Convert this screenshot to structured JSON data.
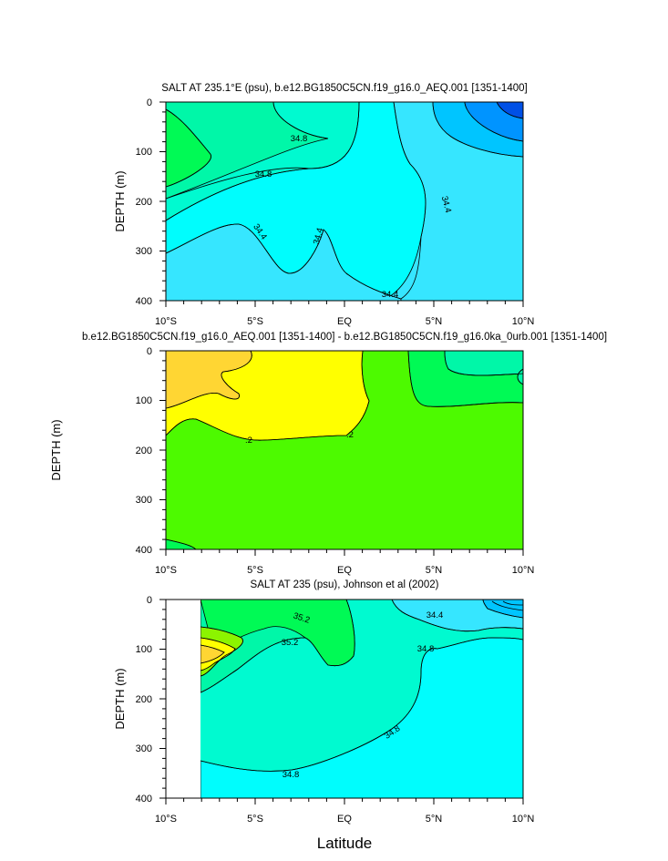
{
  "chart_data": [
    {
      "type": "contour",
      "title": "SALT AT 235.1°E (psu), b.e12.BG1850C5CN.f19_g16.0_AEQ.001 [1351-1400]",
      "ylabel": "DEPTH (m)",
      "xlabel": "",
      "xlim": [
        -10,
        10
      ],
      "ylim": [
        400,
        0
      ],
      "xticks": [
        "10°S",
        "5°S",
        "EQ",
        "5°N",
        "10°N"
      ],
      "yticks": [
        "0",
        "100",
        "200",
        "300",
        "400"
      ],
      "contour_labels": [
        "34.8",
        "34.8",
        "34.4",
        "34.4",
        "34.4",
        "34.4"
      ]
    },
    {
      "type": "contour",
      "title": "b.e12.BG1850C5CN.f19_g16.0_AEQ.001 [1351-1400] - b.e12.BG1850C5CN.f19_g16.0ka_0urb.001 [1351-1400]",
      "ylabel": "DEPTH (m)",
      "xlabel": "",
      "xlim": [
        -10,
        10
      ],
      "ylim": [
        400,
        0
      ],
      "xticks": [
        "10°S",
        "5°S",
        "EQ",
        "5°N",
        "10°N"
      ],
      "yticks": [
        "0",
        "100",
        "200",
        "300",
        "400"
      ],
      "contour_labels": [
        ".2",
        ".2"
      ]
    },
    {
      "type": "contour",
      "title": "SALT AT 235 (psu), Johnson et al (2002)",
      "ylabel": "DEPTH (m)",
      "xlabel": "Latitude",
      "xlim": [
        -10,
        10
      ],
      "ylim": [
        400,
        0
      ],
      "xticks": [
        "10°S",
        "5°S",
        "EQ",
        "5°N",
        "10°N"
      ],
      "yticks": [
        "0",
        "100",
        "200",
        "300",
        "400"
      ],
      "contour_labels": [
        "35.2",
        "35.2",
        "34.4",
        "34.8",
        "34.8",
        "34.8"
      ]
    }
  ],
  "colors": {
    "light_blue": "#36e6ff",
    "cyan": "#00fdfd",
    "aqua_green": "#00fad0",
    "teal_green": "#00f7a8",
    "green": "#00fa55",
    "lime": "#8cf400",
    "light_green": "#4dfa00",
    "yellow": "#ffff00",
    "orange_yellow": "#ffd633",
    "blue_light": "#00c5ff",
    "blue_mid": "#0094ff",
    "blue_dark": "#0050e6"
  }
}
